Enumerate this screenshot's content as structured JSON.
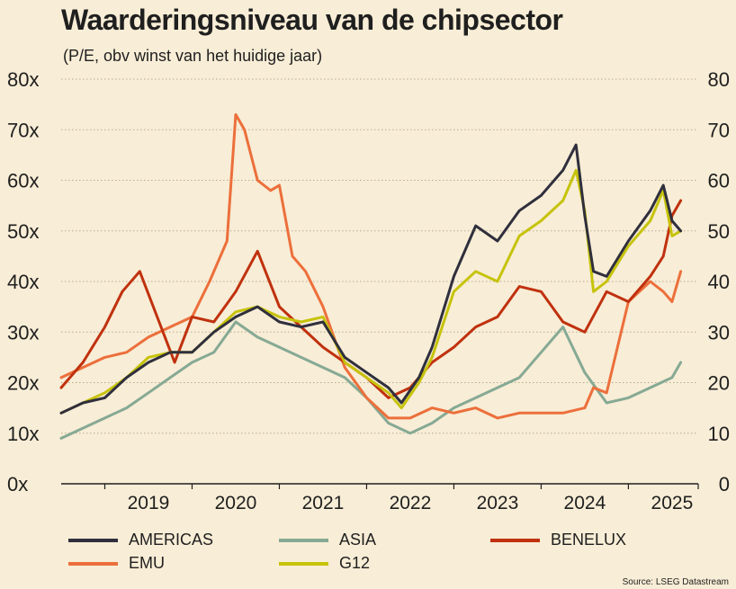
{
  "chart_data": {
    "type": "line",
    "title": "Waarderingsniveau van de chipsector",
    "subtitle": "(P/E, obv winst van het huidige jaar)",
    "source": "Source: LSEG Datastream",
    "left_y_tick_labels": [
      "0x",
      "10x",
      "20x",
      "30x",
      "40x",
      "50x",
      "60x",
      "70x",
      "80x"
    ],
    "right_y_tick_labels": [
      "0",
      "10",
      "20",
      "30",
      "40",
      "50",
      "60",
      "70",
      "80"
    ],
    "x_tick_labels": [
      "2019",
      "2020",
      "2021",
      "2022",
      "2023",
      "2024",
      "2025"
    ],
    "xlim": [
      2018.5,
      2025.8
    ],
    "ylim": [
      0,
      80
    ],
    "grid": true,
    "legend_position": "bottom",
    "series": [
      {
        "name": "AMERICAS",
        "color": "#2f2f3d",
        "x": [
          2018.5,
          2018.75,
          2019.0,
          2019.25,
          2019.5,
          2019.75,
          2020.0,
          2020.25,
          2020.5,
          2020.75,
          2021.0,
          2021.25,
          2021.5,
          2021.75,
          2022.0,
          2022.25,
          2022.4,
          2022.6,
          2022.75,
          2023.0,
          2023.25,
          2023.5,
          2023.75,
          2024.0,
          2024.25,
          2024.4,
          2024.5,
          2024.6,
          2024.75,
          2025.0,
          2025.25,
          2025.4,
          2025.5,
          2025.6
        ],
        "y": [
          14,
          16,
          17,
          21,
          24,
          26,
          26,
          30,
          33,
          35,
          32,
          31,
          32,
          25,
          22,
          19,
          16,
          21,
          27,
          41,
          51,
          48,
          54,
          57,
          62,
          67,
          53,
          42,
          41,
          48,
          54,
          59,
          52,
          50
        ]
      },
      {
        "name": "ASIA",
        "color": "#86a994",
        "x": [
          2018.5,
          2018.75,
          2019.0,
          2019.25,
          2019.5,
          2019.75,
          2020.0,
          2020.25,
          2020.5,
          2020.75,
          2021.0,
          2021.25,
          2021.5,
          2021.75,
          2022.0,
          2022.25,
          2022.5,
          2022.75,
          2023.0,
          2023.25,
          2023.5,
          2023.75,
          2024.0,
          2024.25,
          2024.5,
          2024.75,
          2025.0,
          2025.25,
          2025.5,
          2025.6
        ],
        "y": [
          9,
          11,
          13,
          15,
          18,
          21,
          24,
          26,
          32,
          29,
          27,
          25,
          23,
          21,
          17,
          12,
          10,
          12,
          15,
          17,
          19,
          21,
          26,
          31,
          22,
          16,
          17,
          19,
          21,
          24
        ]
      },
      {
        "name": "BENELUX",
        "color": "#c0310e",
        "x": [
          2018.5,
          2018.75,
          2019.0,
          2019.2,
          2019.4,
          2019.6,
          2019.8,
          2020.0,
          2020.25,
          2020.5,
          2020.75,
          2021.0,
          2021.25,
          2021.5,
          2021.75,
          2022.0,
          2022.25,
          2022.5,
          2022.75,
          2023.0,
          2023.25,
          2023.5,
          2023.75,
          2024.0,
          2024.25,
          2024.5,
          2024.75,
          2025.0,
          2025.25,
          2025.4,
          2025.5,
          2025.6
        ],
        "y": [
          19,
          24,
          31,
          38,
          42,
          33,
          24,
          33,
          32,
          38,
          46,
          35,
          31,
          27,
          24,
          21,
          17,
          19,
          24,
          27,
          31,
          33,
          39,
          38,
          32,
          30,
          38,
          36,
          41,
          45,
          53,
          56
        ]
      },
      {
        "name": "EMU",
        "color": "#ec6f3b",
        "x": [
          2018.5,
          2018.75,
          2019.0,
          2019.25,
          2019.5,
          2019.75,
          2020.0,
          2020.2,
          2020.4,
          2020.5,
          2020.6,
          2020.75,
          2020.9,
          2021.0,
          2021.15,
          2021.3,
          2021.5,
          2021.75,
          2022.0,
          2022.25,
          2022.5,
          2022.75,
          2023.0,
          2023.25,
          2023.5,
          2023.75,
          2024.0,
          2024.25,
          2024.5,
          2024.6,
          2024.75,
          2025.0,
          2025.25,
          2025.4,
          2025.5,
          2025.6
        ],
        "y": [
          21,
          23,
          25,
          26,
          29,
          31,
          33,
          40,
          48,
          73,
          70,
          60,
          58,
          59,
          45,
          42,
          35,
          23,
          17,
          13,
          13,
          15,
          14,
          15,
          13,
          14,
          14,
          14,
          15,
          19,
          18,
          36,
          40,
          38,
          36,
          42
        ]
      },
      {
        "name": "G12",
        "color": "#c6c30b",
        "x": [
          2018.5,
          2018.75,
          2019.0,
          2019.25,
          2019.5,
          2019.75,
          2020.0,
          2020.25,
          2020.5,
          2020.75,
          2021.0,
          2021.25,
          2021.5,
          2021.75,
          2022.0,
          2022.25,
          2022.4,
          2022.6,
          2022.75,
          2023.0,
          2023.25,
          2023.5,
          2023.75,
          2024.0,
          2024.25,
          2024.4,
          2024.5,
          2024.6,
          2024.75,
          2025.0,
          2025.25,
          2025.4,
          2025.5,
          2025.6
        ],
        "y": [
          14,
          16,
          18,
          21,
          25,
          26,
          26,
          30,
          34,
          35,
          33,
          32,
          33,
          24,
          21,
          18,
          15,
          20,
          25,
          38,
          42,
          40,
          49,
          52,
          56,
          62,
          54,
          38,
          40,
          47,
          52,
          58,
          49,
          50
        ]
      }
    ]
  }
}
